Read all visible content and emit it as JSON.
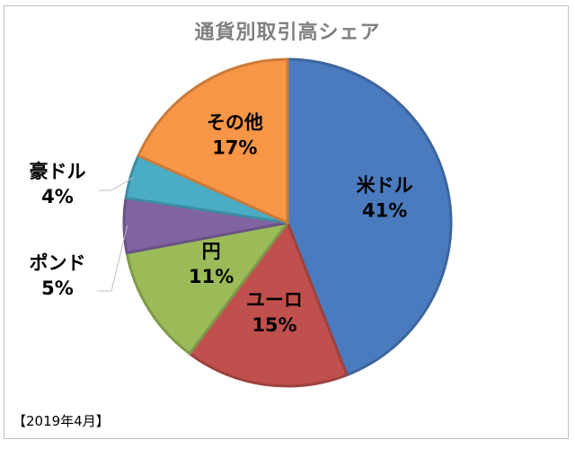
{
  "chart_data": {
    "type": "pie",
    "title": "通貨別取引高シェア",
    "start_angle_deg": 0,
    "direction": "clockwise",
    "slices": [
      {
        "label": "米ドル",
        "pct_label": "41%",
        "value": 41,
        "color": "#4a7bbf",
        "label_inside": true
      },
      {
        "label": "ユーロ",
        "pct_label": "15%",
        "value": 15,
        "color": "#c0504d",
        "label_inside": true
      },
      {
        "label": "円",
        "pct_label": "11%",
        "value": 11,
        "color": "#9bbb59",
        "label_inside": true
      },
      {
        "label": "ポンド",
        "pct_label": "5%",
        "value": 5,
        "color": "#8064a2",
        "label_inside": false
      },
      {
        "label": "豪ドル",
        "pct_label": "4%",
        "value": 4,
        "color": "#4bacc6",
        "label_inside": false
      },
      {
        "label": "その他",
        "pct_label": "17%",
        "value": 17,
        "color": "#f79646",
        "label_inside": true
      }
    ],
    "legend": "none",
    "note": "【2019年4月】"
  }
}
